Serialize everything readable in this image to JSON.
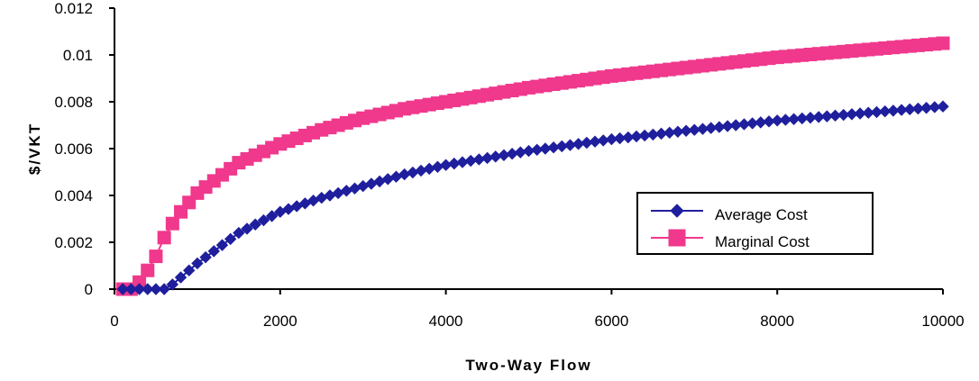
{
  "chart_data": {
    "type": "line",
    "title": "",
    "xlabel": "Two-Way Flow",
    "ylabel": "$/VKT",
    "xlim": [
      0,
      10000
    ],
    "ylim": [
      0,
      0.012
    ],
    "x_ticks": [
      "0",
      "2000",
      "4000",
      "6000",
      "8000",
      "10000"
    ],
    "y_ticks": [
      "0",
      "0.002",
      "0.004",
      "0.006",
      "0.008",
      "0.01",
      "0.012"
    ],
    "grid": false,
    "legend_position": "lower-right",
    "series": [
      {
        "name": "Average Cost",
        "color": "#1f1f9e",
        "marker": "diamond",
        "x": [
          100,
          200,
          300,
          400,
          500,
          600,
          700,
          800,
          900,
          1000,
          1500,
          2000,
          2500,
          3000,
          3500,
          4000,
          5000,
          6000,
          7000,
          8000,
          9000,
          10000
        ],
        "y": [
          0,
          0,
          0,
          0,
          0,
          0,
          0.0002,
          0.0005,
          0.0008,
          0.0011,
          0.0024,
          0.0033,
          0.0039,
          0.0044,
          0.0049,
          0.0053,
          0.0059,
          0.0064,
          0.0068,
          0.0072,
          0.0075,
          0.0078
        ]
      },
      {
        "name": "Marginal Cost",
        "color": "#f0388c",
        "marker": "square",
        "x": [
          100,
          200,
          300,
          400,
          500,
          600,
          700,
          800,
          900,
          1000,
          1500,
          2000,
          2500,
          3000,
          3500,
          4000,
          5000,
          6000,
          7000,
          8000,
          9000,
          10000
        ],
        "y": [
          0,
          0,
          0.0003,
          0.0008,
          0.0014,
          0.0022,
          0.0028,
          0.0033,
          0.0037,
          0.0041,
          0.0054,
          0.0062,
          0.0068,
          0.0073,
          0.0077,
          0.008,
          0.0086,
          0.0091,
          0.0095,
          0.0099,
          0.0102,
          0.0105
        ]
      }
    ]
  }
}
